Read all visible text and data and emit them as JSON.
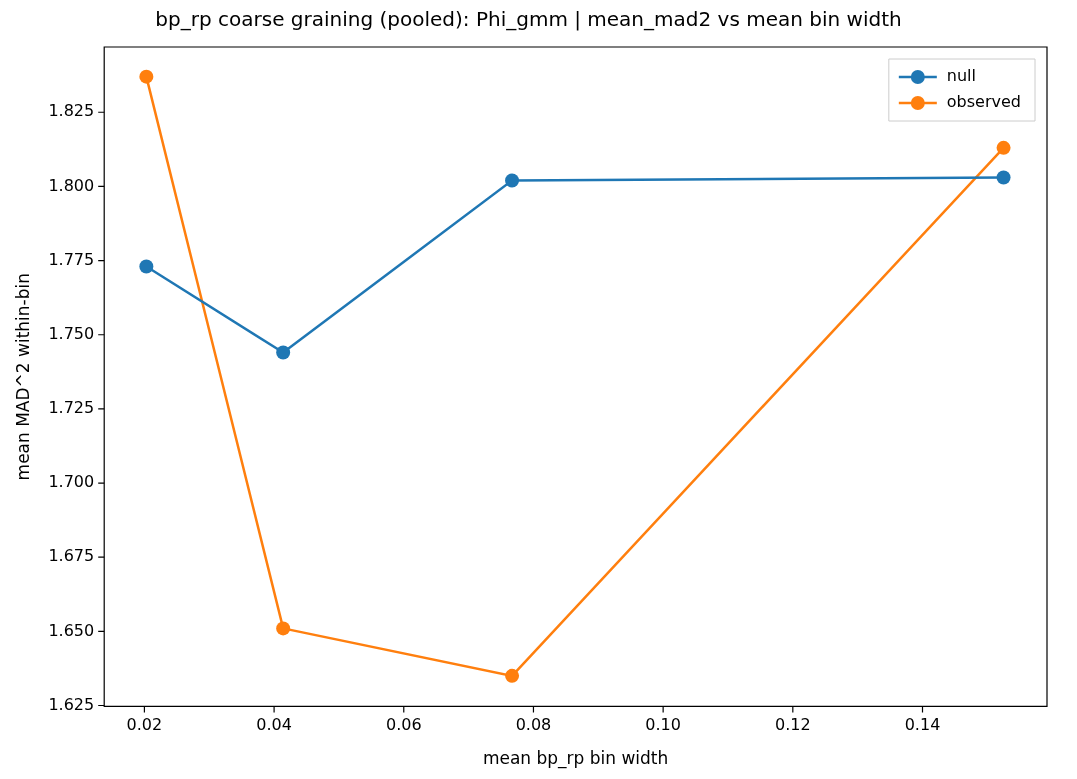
{
  "chart_data": {
    "type": "line",
    "title": "bp_rp coarse graining (pooled): Phi_gmm | mean_mad2 vs mean bin width",
    "xlabel": "mean bp_rp bin width",
    "ylabel": "mean MAD^2 within-bin",
    "x": [
      0.0203,
      0.0414,
      0.0767,
      0.1525
    ],
    "series": [
      {
        "name": "null",
        "color": "#1f77b4",
        "values": [
          1.773,
          1.744,
          1.802,
          1.803
        ]
      },
      {
        "name": "observed",
        "color": "#ff7f0e",
        "values": [
          1.837,
          1.651,
          1.635,
          1.813
        ]
      }
    ],
    "xlim": [
      0.0138,
      0.1592
    ],
    "xticks": [
      0.02,
      0.04,
      0.06,
      0.08,
      {
        "value": 0.1,
        "label": "0.10"
      },
      0.12,
      0.14
    ],
    "ylim": [
      1.6247,
      1.847
    ],
    "yticks": [
      1.625,
      {
        "value": 1.65,
        "label": "1.650"
      },
      1.675,
      {
        "value": 1.7,
        "label": "1.700"
      },
      1.725,
      {
        "value": 1.75,
        "label": "1.750"
      },
      1.775,
      {
        "value": 1.8,
        "label": "1.800"
      },
      1.825
    ],
    "legend": "top right",
    "marker": "circle",
    "line_style": "solid",
    "grid": false
  }
}
